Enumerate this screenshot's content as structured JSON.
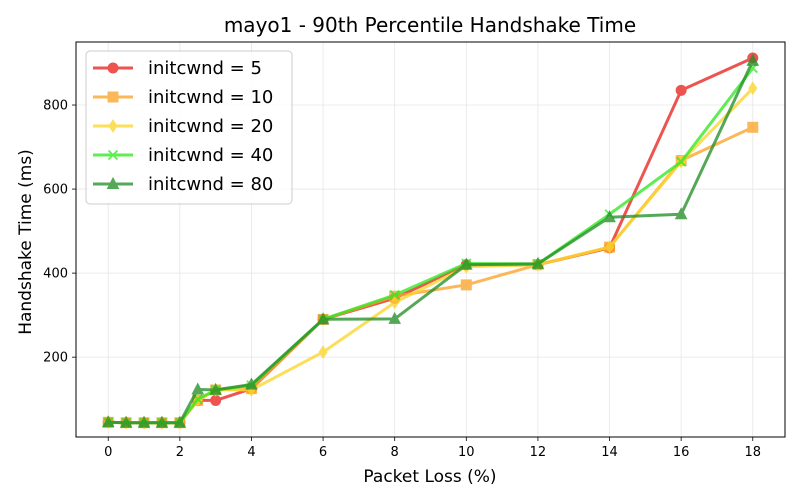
{
  "chart_data": {
    "type": "line",
    "title": "mayo1 - 90th Percentile Handshake Time",
    "xlabel": "Packet Loss (%)",
    "ylabel": "Handshake Time (ms)",
    "xlim": [
      -0.9,
      18.9
    ],
    "ylim": [
      10,
      950
    ],
    "xticks": [
      0,
      2,
      4,
      6,
      8,
      10,
      12,
      14,
      16,
      18
    ],
    "yticks": [
      200,
      400,
      600,
      800
    ],
    "grid": true,
    "legend_position": "top-left",
    "x": [
      0,
      0.5,
      1,
      1.5,
      2,
      2.5,
      3,
      4,
      6,
      8,
      10,
      12,
      14,
      16,
      18
    ],
    "series": [
      {
        "name": "initcwnd = 5",
        "color": "#e8251f",
        "marker": "circle",
        "values": [
          45,
          44,
          44,
          44,
          44,
          97,
          97,
          125,
          290,
          340,
          420,
          420,
          460,
          835,
          912
        ]
      },
      {
        "name": "initcwnd = 10",
        "color": "#fba52b",
        "marker": "square",
        "values": [
          45,
          44,
          44,
          44,
          44,
          97,
          122,
          125,
          290,
          345,
          372,
          420,
          462,
          668,
          747
        ]
      },
      {
        "name": "initcwnd = 20",
        "color": "#fbd62c",
        "marker": "diamond",
        "values": [
          45,
          44,
          44,
          44,
          44,
          97,
          122,
          122,
          212,
          330,
          415,
          420,
          462,
          665,
          840
        ]
      },
      {
        "name": "initcwnd = 40",
        "color": "#33e824",
        "marker": "x",
        "values": [
          45,
          44,
          44,
          44,
          44,
          100,
          122,
          133,
          290,
          348,
          423,
          422,
          540,
          665,
          888
        ]
      },
      {
        "name": "initcwnd = 80",
        "color": "#26902a",
        "marker": "triangle",
        "values": [
          45,
          44,
          44,
          44,
          44,
          123,
          122,
          135,
          290,
          291,
          420,
          422,
          533,
          540,
          905
        ]
      }
    ]
  }
}
